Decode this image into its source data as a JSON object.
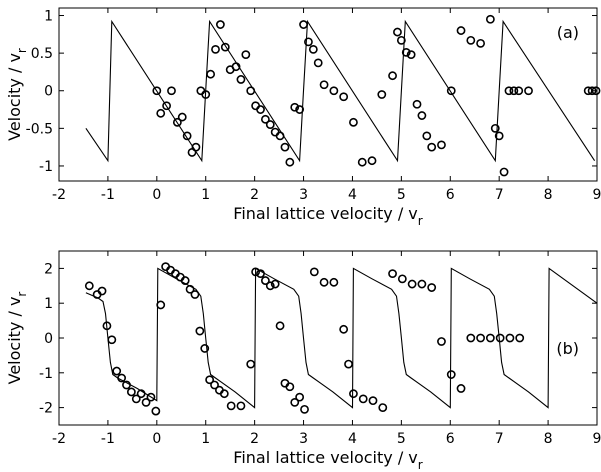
{
  "chart_data": [
    {
      "panel": "(a)",
      "type": "line",
      "xlabel": "Final lattice velocity / v",
      "xlabel_sub": "r",
      "ylabel": "Velocity / v",
      "ylabel_sub": "r",
      "xlim": [
        -2,
        9
      ],
      "ylim": [
        -1.2,
        1.1
      ],
      "xticks": [
        -2,
        -1,
        0,
        1,
        2,
        3,
        4,
        5,
        6,
        7,
        8,
        9
      ],
      "yticks": [
        -1,
        -0.5,
        0,
        0.5,
        1
      ],
      "grid": false,
      "legend": "none",
      "series": [
        {
          "style": "line",
          "x": [
            -1.45,
            -1.0,
            -0.92,
            0.92,
            1.0,
            1.08,
            2.92,
            3.0,
            3.08,
            4.92,
            5.0,
            5.08,
            6.92,
            7.0,
            7.08,
            8.95
          ],
          "y": [
            -0.5,
            -0.93,
            0.92,
            -0.93,
            0.0,
            0.92,
            -0.93,
            0.0,
            0.92,
            -0.93,
            0.0,
            0.92,
            -0.93,
            0.0,
            0.92,
            -0.93
          ]
        },
        {
          "style": "circle",
          "x": [
            0.0,
            0.08,
            0.2,
            0.3,
            0.42,
            0.52,
            0.62,
            0.72,
            0.8,
            0.9,
            1.0,
            1.1,
            1.2,
            1.3,
            1.4,
            1.5,
            1.62,
            1.72,
            1.82,
            1.92,
            2.02,
            2.12,
            2.22,
            2.32,
            2.42,
            2.52,
            2.62,
            2.72,
            2.82,
            2.92,
            3.0,
            3.1,
            3.2,
            3.3,
            3.42,
            3.62,
            3.82,
            4.02,
            4.2,
            4.4,
            4.6,
            4.82,
            4.92,
            5.0,
            5.1,
            5.2,
            5.32,
            5.42,
            5.52,
            5.62,
            5.82,
            6.02,
            6.22,
            6.42,
            6.62,
            6.82,
            6.92,
            7.0,
            7.1,
            7.2,
            7.3,
            7.4,
            7.6,
            8.82,
            8.9,
            8.98
          ],
          "y": [
            0.0,
            -0.3,
            -0.2,
            0.0,
            -0.42,
            -0.35,
            -0.6,
            -0.82,
            -0.75,
            0.0,
            -0.05,
            0.22,
            0.55,
            0.88,
            0.58,
            0.28,
            0.32,
            0.15,
            0.48,
            0.0,
            -0.2,
            -0.25,
            -0.38,
            -0.45,
            -0.55,
            -0.6,
            -0.75,
            -0.95,
            -0.22,
            -0.25,
            0.88,
            0.65,
            0.55,
            0.37,
            0.08,
            0.0,
            -0.08,
            -0.42,
            -0.95,
            -0.93,
            -0.05,
            0.2,
            0.78,
            0.67,
            0.51,
            0.48,
            -0.18,
            -0.33,
            -0.6,
            -0.75,
            -0.72,
            0.0,
            0.8,
            0.67,
            0.63,
            0.95,
            -0.5,
            -0.6,
            -1.08,
            0.0,
            0.0,
            0.0,
            0.0,
            0.0,
            0.0,
            0.0
          ]
        }
      ]
    },
    {
      "panel": "(b)",
      "type": "line",
      "xlabel": "Final lattice velocity / v",
      "xlabel_sub": "r",
      "ylabel": "Velocity / v",
      "ylabel_sub": "r",
      "xlim": [
        -2,
        9
      ],
      "ylim": [
        -2.5,
        2.5
      ],
      "xticks": [
        -2,
        -1,
        0,
        1,
        2,
        3,
        4,
        5,
        6,
        7,
        8,
        9
      ],
      "yticks": [
        -2,
        -1,
        0,
        1,
        2
      ],
      "grid": false,
      "legend": "none",
      "series": [
        {
          "style": "line",
          "x": [
            -1.45,
            -1.2,
            -1.1,
            -1.05,
            -1.0,
            -0.95,
            -0.9,
            -0.8,
            -0.4,
            0.0,
            0.02,
            0.4,
            0.8,
            0.9,
            0.95,
            1.0,
            1.05,
            1.1,
            1.2,
            1.6,
            2.0,
            2.02,
            2.4,
            2.8,
            2.9,
            2.95,
            3.0,
            3.05,
            3.1,
            3.2,
            3.6,
            4.0,
            4.02,
            4.4,
            4.8,
            4.9,
            4.95,
            5.0,
            5.05,
            5.1,
            5.2,
            5.6,
            6.0,
            6.02,
            6.4,
            6.8,
            6.9,
            6.95,
            7.0,
            7.05,
            7.1,
            7.2,
            7.6,
            8.0,
            8.02,
            9.0
          ],
          "y": [
            1.3,
            1.15,
            1.05,
            0.7,
            0.0,
            -0.7,
            -1.05,
            -1.15,
            -1.45,
            -1.8,
            2.0,
            1.7,
            1.4,
            1.2,
            0.7,
            0.0,
            -0.7,
            -1.05,
            -1.15,
            -1.55,
            -2.0,
            2.0,
            1.7,
            1.4,
            1.2,
            0.7,
            0.0,
            -0.7,
            -1.05,
            -1.15,
            -1.55,
            -2.0,
            2.0,
            1.7,
            1.4,
            1.2,
            0.7,
            0.0,
            -0.7,
            -1.05,
            -1.15,
            -1.55,
            -2.0,
            2.0,
            1.7,
            1.4,
            1.2,
            0.7,
            0.0,
            -0.7,
            -1.05,
            -1.15,
            -1.55,
            -2.0,
            2.0,
            1.0
          ]
        },
        {
          "style": "circle",
          "x": [
            -1.38,
            -1.22,
            -1.12,
            -1.02,
            -0.92,
            -0.82,
            -0.72,
            -0.62,
            -0.52,
            -0.42,
            -0.32,
            -0.22,
            -0.12,
            -0.02,
            0.08,
            0.18,
            0.28,
            0.38,
            0.48,
            0.58,
            0.68,
            0.78,
            0.88,
            0.98,
            1.08,
            1.18,
            1.28,
            1.38,
            1.52,
            1.72,
            1.92,
            2.02,
            2.12,
            2.22,
            2.32,
            2.42,
            2.52,
            2.62,
            2.72,
            2.82,
            2.92,
            3.02,
            3.22,
            3.42,
            3.62,
            3.82,
            3.92,
            4.02,
            4.22,
            4.42,
            4.62,
            4.82,
            5.02,
            5.22,
            5.42,
            5.62,
            5.82,
            6.02,
            6.22,
            6.42,
            6.62,
            6.82,
            7.02,
            7.22,
            7.42
          ],
          "y": [
            1.5,
            1.25,
            1.35,
            0.35,
            -0.05,
            -0.95,
            -1.15,
            -1.35,
            -1.55,
            -1.75,
            -1.6,
            -1.85,
            -1.7,
            -2.1,
            0.95,
            2.05,
            1.95,
            1.85,
            1.75,
            1.65,
            1.4,
            1.25,
            0.2,
            -0.3,
            -1.2,
            -1.35,
            -1.5,
            -1.6,
            -1.95,
            -1.95,
            -0.75,
            1.9,
            1.85,
            1.65,
            1.5,
            1.55,
            0.35,
            -1.3,
            -1.4,
            -1.85,
            -1.7,
            -2.05,
            1.9,
            1.6,
            1.6,
            0.25,
            -0.75,
            -1.6,
            -1.75,
            -1.8,
            -2.0,
            1.85,
            1.7,
            1.55,
            1.55,
            1.45,
            -0.1,
            -1.05,
            -1.45,
            0.0,
            0.0,
            0.0,
            0.0,
            0.0,
            0.0
          ]
        }
      ]
    }
  ]
}
